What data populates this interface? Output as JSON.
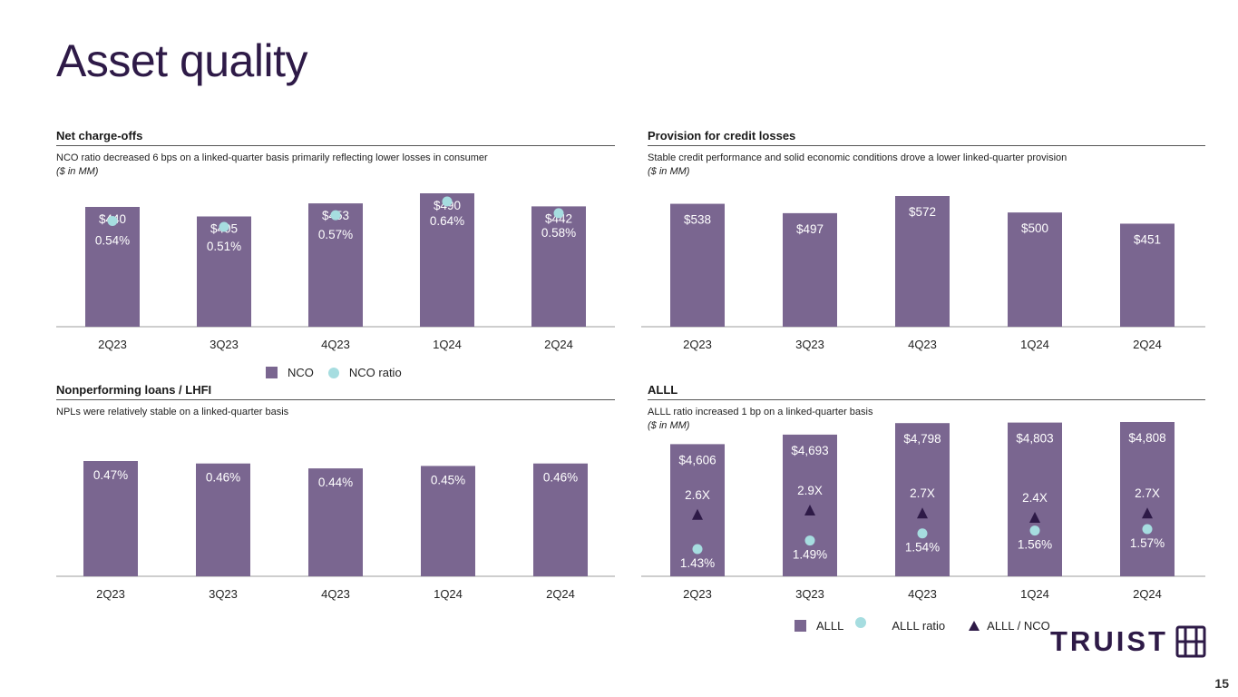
{
  "page": {
    "title": "Asset quality",
    "page_number": "15",
    "logo_text": "TRUIST"
  },
  "colors": {
    "bar": "#7a6690",
    "dot": "#a6dde0",
    "triangle": "#2e1a47",
    "brand": "#2e1a47"
  },
  "panels": {
    "nco": {
      "title": "Net charge-offs",
      "subtitle": "NCO ratio decreased 6 bps on a linked-quarter basis primarily reflecting lower losses in consumer",
      "unit": "($ in MM)"
    },
    "provision": {
      "title": "Provision for credit losses",
      "subtitle": "Stable credit performance and solid economic conditions drove a lower linked-quarter provision",
      "unit": "($ in MM)"
    },
    "npl": {
      "title": "Nonperforming loans / LHFI",
      "subtitle": "NPLs were relatively stable on a linked-quarter basis",
      "unit": ""
    },
    "alll": {
      "title": "ALLL",
      "subtitle": "ALLL ratio increased 1 bp on a linked-quarter basis",
      "unit": "($ in MM)"
    }
  },
  "legends": {
    "nco": {
      "bar": "NCO",
      "dot": "NCO ratio"
    },
    "alll": {
      "bar": "ALLL",
      "dot": "ALLL ratio",
      "triangle": "ALLL / NCO"
    }
  },
  "chart_data": [
    {
      "id": "nco",
      "type": "bar",
      "title": "Net charge-offs",
      "categories": [
        "2Q23",
        "3Q23",
        "4Q23",
        "1Q24",
        "2Q24"
      ],
      "series": [
        {
          "name": "NCO",
          "kind": "bar",
          "values": [
            440,
            405,
            453,
            490,
            442
          ],
          "labels": [
            "$440",
            "$405",
            "$453",
            "$490",
            "$442"
          ]
        },
        {
          "name": "NCO ratio",
          "kind": "dot",
          "values": [
            0.54,
            0.51,
            0.57,
            0.64,
            0.58
          ],
          "labels": [
            "0.54%",
            "0.51%",
            "0.57%",
            "0.64%",
            "0.58%"
          ]
        }
      ],
      "ylabel": "$ in MM",
      "legend": "bottom"
    },
    {
      "id": "provision",
      "type": "bar",
      "title": "Provision for credit losses",
      "categories": [
        "2Q23",
        "3Q23",
        "4Q23",
        "1Q24",
        "2Q24"
      ],
      "series": [
        {
          "name": "Provision",
          "kind": "bar",
          "values": [
            538,
            497,
            572,
            500,
            451
          ],
          "labels": [
            "$538",
            "$497",
            "$572",
            "$500",
            "$451"
          ]
        }
      ],
      "ylabel": "$ in MM"
    },
    {
      "id": "npl",
      "type": "bar",
      "title": "Nonperforming loans / LHFI",
      "categories": [
        "2Q23",
        "3Q23",
        "4Q23",
        "1Q24",
        "2Q24"
      ],
      "series": [
        {
          "name": "NPL / LHFI",
          "kind": "bar",
          "values": [
            0.47,
            0.46,
            0.44,
            0.45,
            0.46
          ],
          "labels": [
            "0.47%",
            "0.46%",
            "0.44%",
            "0.45%",
            "0.46%"
          ]
        }
      ]
    },
    {
      "id": "alll",
      "type": "bar",
      "title": "ALLL",
      "categories": [
        "2Q23",
        "3Q23",
        "4Q23",
        "1Q24",
        "2Q24"
      ],
      "series": [
        {
          "name": "ALLL",
          "kind": "bar",
          "values": [
            4606,
            4693,
            4798,
            4803,
            4808
          ],
          "labels": [
            "$4,606",
            "$4,693",
            "$4,798",
            "$4,803",
            "$4,808"
          ]
        },
        {
          "name": "ALLL ratio",
          "kind": "dot",
          "values": [
            1.43,
            1.49,
            1.54,
            1.56,
            1.57
          ],
          "labels": [
            "1.43%",
            "1.49%",
            "1.54%",
            "1.56%",
            "1.57%"
          ]
        },
        {
          "name": "ALLL / NCO",
          "kind": "triangle",
          "values": [
            2.6,
            2.9,
            2.7,
            2.4,
            2.7
          ],
          "labels": [
            "2.6X",
            "2.9X",
            "2.7X",
            "2.4X",
            "2.7X"
          ]
        }
      ],
      "ylabel": "$ in MM",
      "legend": "bottom"
    }
  ]
}
